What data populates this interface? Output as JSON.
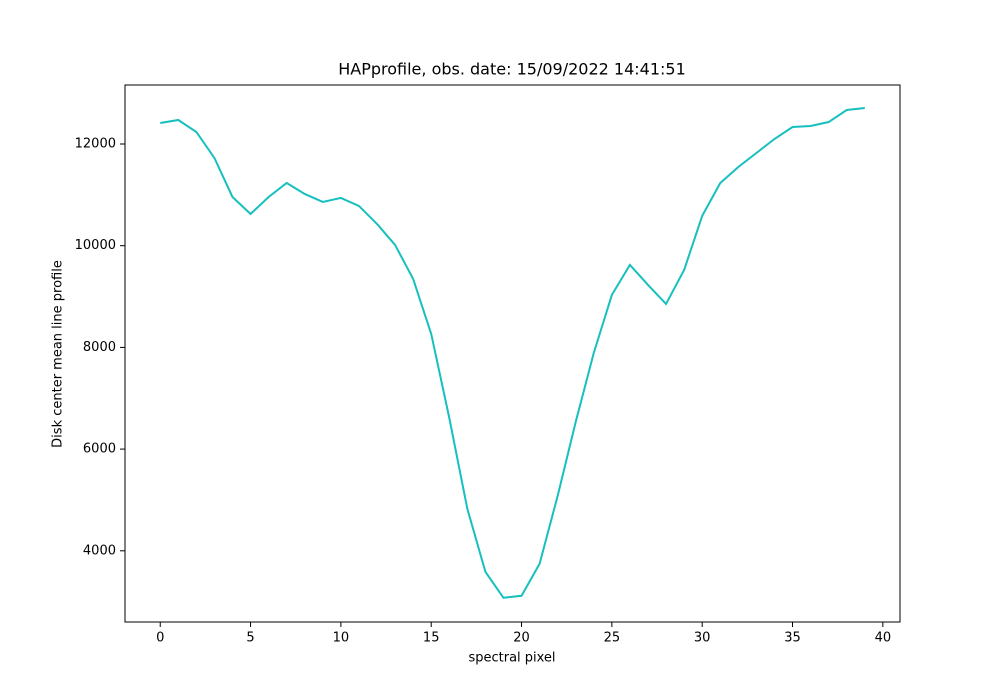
{
  "chart_data": {
    "type": "line",
    "title": "HAPprofile, obs. date: 15/09/2022 14:41:51",
    "xlabel": "spectral pixel",
    "ylabel": "Disk center mean line profile",
    "x": [
      0,
      1,
      2,
      3,
      4,
      5,
      6,
      7,
      8,
      9,
      10,
      11,
      12,
      13,
      14,
      15,
      16,
      17,
      18,
      19,
      20,
      21,
      22,
      23,
      24,
      25,
      26,
      27,
      28,
      29,
      30,
      31,
      32,
      33,
      34,
      35,
      36,
      37,
      38,
      39
    ],
    "values": [
      12413,
      12472,
      12236,
      11725,
      10958,
      10624,
      10958,
      11233,
      11017,
      10860,
      10939,
      10781,
      10428,
      10015,
      9346,
      8265,
      6614,
      4826,
      3587,
      3076,
      3116,
      3745,
      5081,
      6536,
      7892,
      9032,
      9622,
      9229,
      8855,
      9523,
      10585,
      11233,
      11548,
      11823,
      12098,
      12334,
      12354,
      12432,
      12668,
      12708
    ],
    "color": "#17bfbf",
    "xlim": [
      -1.95,
      40.95
    ],
    "ylim": [
      2600,
      13160
    ],
    "xticks": [
      0,
      5,
      10,
      15,
      20,
      25,
      30,
      35,
      40
    ],
    "yticks": [
      4000,
      6000,
      8000,
      10000,
      12000
    ],
    "grid": false
  }
}
